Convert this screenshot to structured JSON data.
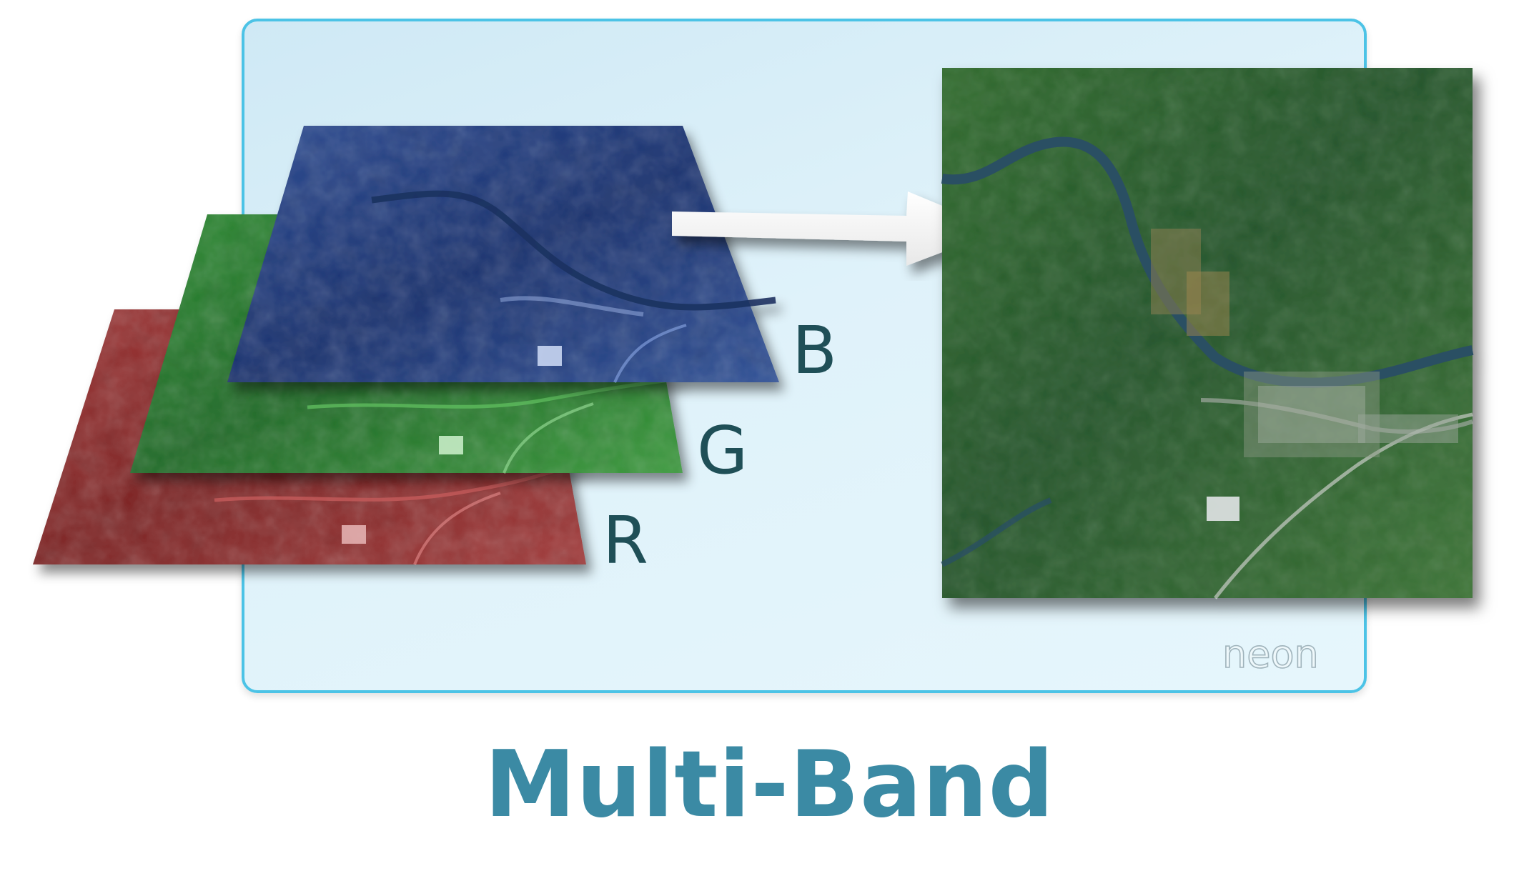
{
  "diagram": {
    "band_labels": {
      "blue": "B",
      "green": "G",
      "red": "R"
    },
    "logo_text": "neon",
    "title": "Multi-Band"
  },
  "colors": {
    "panel_border": "#4cc3e6",
    "panel_fill": "#dff2fa",
    "title": "#3b8aa4",
    "red_band": "#8f2a2a",
    "green_band": "#2f7d33",
    "blue_band": "#1f3a7c",
    "rgb_composite": "#2f5e2c",
    "river": "#2b4f63"
  },
  "icons": {
    "arrow": "right-arrow-icon",
    "logo": "neon-logo-icon"
  }
}
